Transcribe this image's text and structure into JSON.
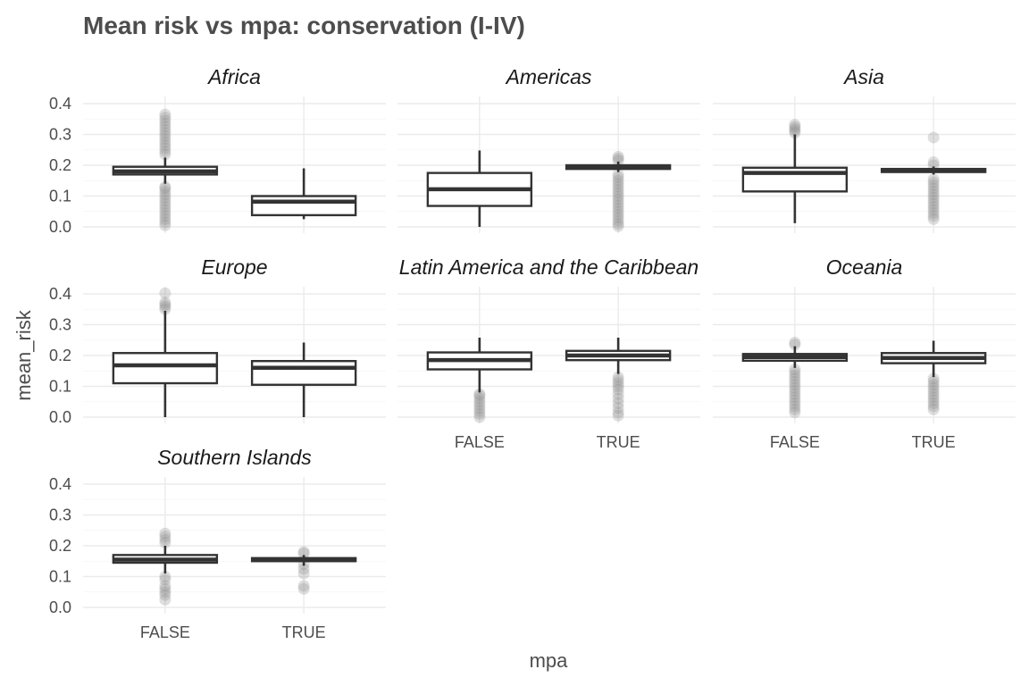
{
  "chart_data": {
    "type": "boxplot",
    "title": "Mean risk vs mpa: conservation (I-IV)",
    "xlabel": "mpa",
    "ylabel": "mean_risk",
    "categories": [
      "FALSE",
      "TRUE"
    ],
    "ylim": [
      0,
      0.4
    ],
    "y_ticks": [
      "0.0",
      "0.1",
      "0.2",
      "0.3",
      "0.4"
    ],
    "grid": true,
    "facets": [
      {
        "name": "Africa",
        "boxes": [
          {
            "x": "FALSE",
            "low": 0.14,
            "q1": 0.17,
            "median": 0.18,
            "q3": 0.195,
            "high": 0.225,
            "outliers": [
              0.005,
              0.015,
              0.025,
              0.035,
              0.045,
              0.055,
              0.065,
              0.075,
              0.085,
              0.095,
              0.105,
              0.115,
              0.125,
              0.13,
              0.235,
              0.245,
              0.255,
              0.265,
              0.275,
              0.285,
              0.295,
              0.305,
              0.315,
              0.325,
              0.335,
              0.345,
              0.355,
              0.365
            ]
          },
          {
            "x": "TRUE",
            "low": 0.025,
            "q1": 0.038,
            "median": 0.082,
            "q3": 0.1,
            "high": 0.19,
            "outliers": []
          }
        ]
      },
      {
        "name": "Americas",
        "boxes": [
          {
            "x": "FALSE",
            "low": 0.0,
            "q1": 0.068,
            "median": 0.122,
            "q3": 0.175,
            "high": 0.248,
            "outliers": []
          },
          {
            "x": "TRUE",
            "low": 0.178,
            "q1": 0.188,
            "median": 0.195,
            "q3": 0.2,
            "high": 0.212,
            "outliers": [
              0.002,
              0.01,
              0.02,
              0.03,
              0.04,
              0.05,
              0.06,
              0.07,
              0.08,
              0.09,
              0.1,
              0.11,
              0.12,
              0.13,
              0.14,
              0.15,
              0.16,
              0.17,
              0.215,
              0.222,
              0.228
            ]
          }
        ]
      },
      {
        "name": "Asia",
        "boxes": [
          {
            "x": "FALSE",
            "low": 0.012,
            "q1": 0.115,
            "median": 0.175,
            "q3": 0.192,
            "high": 0.3,
            "outliers": [
              0.305,
              0.312,
              0.318,
              0.325,
              0.332
            ]
          },
          {
            "x": "TRUE",
            "low": 0.17,
            "q1": 0.178,
            "median": 0.183,
            "q3": 0.188,
            "high": 0.196,
            "outliers": [
              0.025,
              0.035,
              0.045,
              0.055,
              0.065,
              0.075,
              0.085,
              0.095,
              0.105,
              0.115,
              0.125,
              0.135,
              0.145,
              0.155,
              0.2,
              0.21,
              0.29
            ]
          }
        ]
      },
      {
        "name": "Europe",
        "boxes": [
          {
            "x": "FALSE",
            "low": 0.0,
            "q1": 0.11,
            "median": 0.168,
            "q3": 0.208,
            "high": 0.345,
            "outliers": [
              0.35,
              0.358,
              0.365,
              0.372,
              0.402
            ]
          },
          {
            "x": "TRUE",
            "low": 0.0,
            "q1": 0.105,
            "median": 0.16,
            "q3": 0.182,
            "high": 0.242,
            "outliers": []
          }
        ]
      },
      {
        "name": "Latin America and the Caribbean",
        "boxes": [
          {
            "x": "FALSE",
            "low": 0.08,
            "q1": 0.155,
            "median": 0.185,
            "q3": 0.21,
            "high": 0.258,
            "outliers": [
              0.0,
              0.01,
              0.02,
              0.03,
              0.04,
              0.05,
              0.06,
              0.07,
              0.075
            ]
          },
          {
            "x": "TRUE",
            "low": 0.14,
            "q1": 0.185,
            "median": 0.2,
            "q3": 0.215,
            "high": 0.258,
            "outliers": [
              0.005,
              0.015,
              0.03,
              0.045,
              0.06,
              0.075,
              0.09,
              0.1,
              0.11,
              0.12,
              0.13
            ]
          }
        ]
      },
      {
        "name": "Oceania",
        "boxes": [
          {
            "x": "FALSE",
            "low": 0.16,
            "q1": 0.183,
            "median": 0.195,
            "q3": 0.205,
            "high": 0.23,
            "outliers": [
              0.015,
              0.025,
              0.035,
              0.045,
              0.055,
              0.065,
              0.075,
              0.085,
              0.095,
              0.105,
              0.115,
              0.125,
              0.135,
              0.145,
              0.155,
              0.235,
              0.242
            ]
          },
          {
            "x": "TRUE",
            "low": 0.13,
            "q1": 0.175,
            "median": 0.192,
            "q3": 0.208,
            "high": 0.248,
            "outliers": [
              0.025,
              0.035,
              0.045,
              0.055,
              0.065,
              0.075,
              0.085,
              0.095,
              0.105,
              0.115,
              0.125
            ]
          }
        ]
      },
      {
        "name": "Southern Islands",
        "boxes": [
          {
            "x": "FALSE",
            "low": 0.11,
            "q1": 0.145,
            "median": 0.155,
            "q3": 0.17,
            "high": 0.2,
            "outliers": [
              0.025,
              0.04,
              0.05,
              0.06,
              0.07,
              0.09,
              0.1,
              0.21,
              0.22,
              0.23,
              0.24
            ]
          },
          {
            "x": "TRUE",
            "low": 0.135,
            "q1": 0.15,
            "median": 0.155,
            "q3": 0.16,
            "high": 0.17,
            "outliers": [
              0.06,
              0.07,
              0.11,
              0.125,
              0.14,
              0.175,
              0.18
            ]
          }
        ]
      }
    ]
  }
}
